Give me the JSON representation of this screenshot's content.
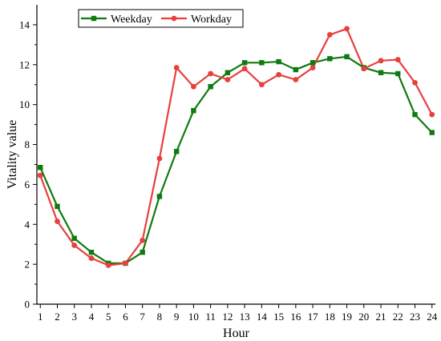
{
  "chart_data": {
    "type": "line",
    "title": "",
    "xlabel": "Hour",
    "ylabel": "Vitality value",
    "x": [
      1,
      2,
      3,
      4,
      5,
      6,
      7,
      8,
      9,
      10,
      11,
      12,
      13,
      14,
      15,
      16,
      17,
      18,
      19,
      20,
      21,
      22,
      23,
      24
    ],
    "x_ticks": [
      1,
      2,
      3,
      4,
      5,
      6,
      7,
      8,
      9,
      10,
      11,
      12,
      13,
      14,
      15,
      16,
      17,
      18,
      19,
      20,
      21,
      22,
      23,
      24
    ],
    "y_ticks": [
      0,
      2,
      4,
      6,
      8,
      10,
      12,
      14
    ],
    "xlim": [
      0.8,
      24.2
    ],
    "ylim": [
      0,
      15
    ],
    "grid": false,
    "legend_position": "top-left",
    "series": [
      {
        "name": "Weekday",
        "color": "#0f7a0f",
        "marker": "square",
        "values": [
          6.85,
          4.9,
          3.3,
          2.6,
          2.05,
          2.05,
          2.6,
          5.4,
          7.65,
          9.7,
          10.9,
          11.6,
          12.1,
          12.1,
          12.15,
          11.75,
          12.1,
          12.3,
          12.4,
          11.85,
          11.6,
          11.55,
          9.5,
          8.6
        ]
      },
      {
        "name": "Workday",
        "color": "#e8403d",
        "marker": "circle",
        "values": [
          6.45,
          4.15,
          2.95,
          2.3,
          1.95,
          2.05,
          3.2,
          7.3,
          11.85,
          10.9,
          11.55,
          11.25,
          11.8,
          11.0,
          11.5,
          11.25,
          11.85,
          13.5,
          13.8,
          11.8,
          12.2,
          12.25,
          11.1,
          9.5
        ]
      }
    ]
  }
}
